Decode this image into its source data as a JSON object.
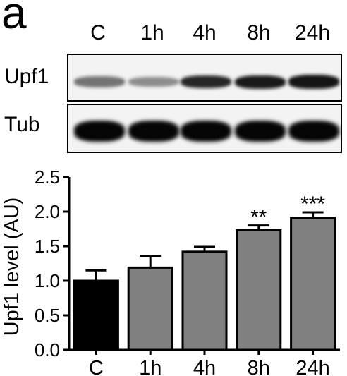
{
  "figure": {
    "panel_letter": "a",
    "lanes": [
      "C",
      "1h",
      "4h",
      "8h",
      "24h"
    ],
    "blot_rows": [
      {
        "label": "Upf1",
        "intensity": [
          0.55,
          0.45,
          0.85,
          0.9,
          0.92
        ]
      },
      {
        "label": "Tub",
        "intensity": [
          0.98,
          0.98,
          0.98,
          0.98,
          0.98
        ]
      }
    ]
  },
  "chart_data": {
    "type": "bar",
    "categories": [
      "C",
      "1h",
      "4h",
      "8h",
      "24h"
    ],
    "values": [
      1.0,
      1.19,
      1.42,
      1.73,
      1.91
    ],
    "errors": [
      0.15,
      0.17,
      0.07,
      0.07,
      0.08
    ],
    "significance": [
      "",
      "",
      "",
      "**",
      "***"
    ],
    "bar_colors": [
      "#000000",
      "#808080",
      "#808080",
      "#808080",
      "#808080"
    ],
    "ylabel": "Upf1 level (AU)",
    "xlabel": "",
    "ylim": [
      0,
      2.5
    ],
    "yticks": [
      "0.0",
      "0.5",
      "1.0",
      "1.5",
      "2.0",
      "2.5"
    ],
    "grid": false
  }
}
